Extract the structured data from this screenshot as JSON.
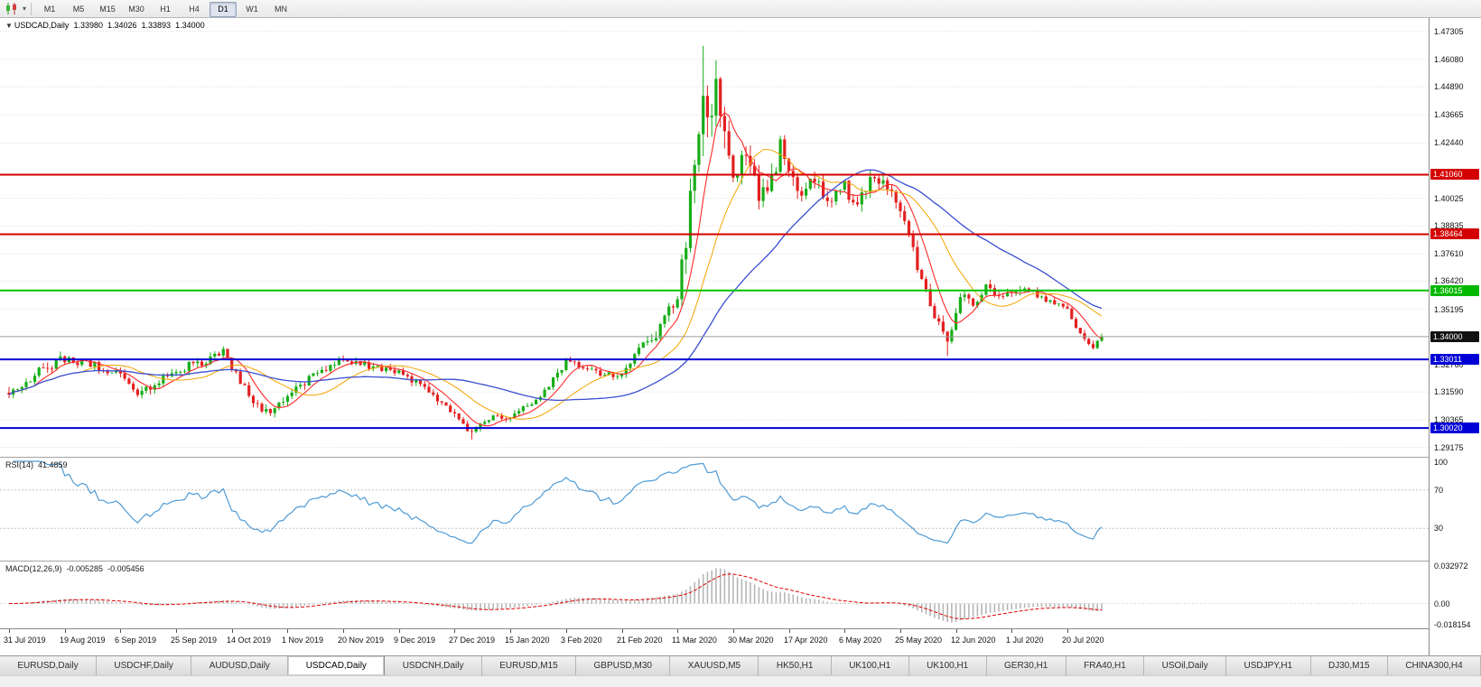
{
  "toolbar": {
    "chart_icon": "candlestick-chart-icon",
    "caret_icon": "▾",
    "timeframes": [
      "M1",
      "M5",
      "M15",
      "M30",
      "H1",
      "H4",
      "D1",
      "W1",
      "MN"
    ],
    "active_timeframe": "D1"
  },
  "symbol_header": {
    "marker": "▼",
    "name": "USDCAD,Daily",
    "open": "1.33980",
    "high": "1.34026",
    "low": "1.33893",
    "close": "1.34000"
  },
  "price_axis": {
    "labels": [
      {
        "text": "1.47305",
        "value": 1.47305
      },
      {
        "text": "1.46080",
        "value": 1.4608
      },
      {
        "text": "1.44890",
        "value": 1.4489
      },
      {
        "text": "1.43665",
        "value": 1.43665
      },
      {
        "text": "1.42440",
        "value": 1.4244
      },
      {
        "text": "1.40025",
        "value": 1.40025
      },
      {
        "text": "1.38835",
        "value": 1.38835
      },
      {
        "text": "1.37610",
        "value": 1.3761
      },
      {
        "text": "1.36420",
        "value": 1.3642
      },
      {
        "text": "1.35195",
        "value": 1.35195
      },
      {
        "text": "1.32760",
        "value": 1.3276
      },
      {
        "text": "1.31590",
        "value": 1.3159
      },
      {
        "text": "1.30365",
        "value": 1.30365
      },
      {
        "text": "1.29175",
        "value": 1.29175
      }
    ],
    "badges": [
      {
        "text": "1.41060",
        "value": 1.4106,
        "bg": "#d40000"
      },
      {
        "text": "1.38464",
        "value": 1.38464,
        "bg": "#d40000"
      },
      {
        "text": "1.36015",
        "value": 1.36015,
        "bg": "#00b800"
      },
      {
        "text": "1.34000",
        "value": 1.34,
        "bg": "#111111"
      },
      {
        "text": "1.33011",
        "value": 1.33011,
        "bg": "#0000d6"
      },
      {
        "text": "1.30020",
        "value": 1.3002,
        "bg": "#0000d6"
      }
    ]
  },
  "indicators": {
    "rsi": {
      "title": "RSI(14)",
      "value": "41.4859",
      "color": "#4f9bd5",
      "levels": [
        {
          "text": "100",
          "value": 100
        },
        {
          "text": "70",
          "value": 70
        },
        {
          "text": "30",
          "value": 30
        }
      ]
    },
    "macd": {
      "title": "MACD(12,26,9)",
      "value_main": "-0.005285",
      "value_signal": "-0.005456",
      "signal_color": "#e00000",
      "hist_color": "#b6b6b6",
      "axis": [
        {
          "text": "0.032972",
          "value": 0.032972
        },
        {
          "text": "0.00",
          "value": 0
        },
        {
          "text": "-0.018154",
          "value": -0.018154
        }
      ]
    }
  },
  "time_axis": {
    "dates": [
      "31 Jul 2019",
      "19 Aug 2019",
      "6 Sep 2019",
      "25 Sep 2019",
      "14 Oct 2019",
      "1 Nov 2019",
      "20 Nov 2019",
      "9 Dec 2019",
      "27 Dec 2019",
      "15 Jan 2020",
      "3 Feb 2020",
      "21 Feb 2020",
      "11 Mar 2020",
      "30 Mar 2020",
      "17 Apr 2020",
      "6 May 2020",
      "25 May 2020",
      "12 Jun 2020",
      "1 Jul 2020",
      "20 Jul 2020"
    ]
  },
  "tabs": {
    "active_index": 3,
    "items": [
      "EURUSD,Daily",
      "USDCHF,Daily",
      "AUDUSD,Daily",
      "USDCAD,Daily",
      "USDCNH,Daily",
      "EURUSD,M15",
      "GBPUSD,M30",
      "XAUUSD,M5",
      "HK50,H1",
      "UK100,H1",
      "UK100,H1",
      "GER30,H1",
      "FRA40,H1",
      "USOil,Daily",
      "USDJPY,H1",
      "DJ30,M15",
      "CHINA300,H4"
    ]
  },
  "chart_data": {
    "type": "candlestick",
    "symbol": "USDCAD",
    "timeframe": "Daily",
    "title": "USDCAD,Daily",
    "bar_count": 256,
    "last_close": 1.34,
    "price_range": {
      "min": 1.29,
      "max": 1.4765
    },
    "macd_range": {
      "min": -0.0182,
      "max": 0.033
    },
    "extremes": {
      "high": 1.4668,
      "high_index": 162,
      "low": 1.2952,
      "low_index": 108
    },
    "forced_lows": [
      [
        219,
        1.3316
      ]
    ],
    "colors": {
      "up": "#17ad17",
      "down": "#e32020",
      "grid": "#dcdcdc",
      "current_price_line": "#9a9a9a"
    },
    "hlines": [
      {
        "value": 1.4106,
        "color": "#d40000",
        "w": 2
      },
      {
        "value": 1.38464,
        "color": "#d40000",
        "w": 2
      },
      {
        "value": 1.36015,
        "color": "#00c400",
        "w": 2
      },
      {
        "value": 1.33011,
        "color": "#0000d6",
        "w": 2
      },
      {
        "value": 1.3002,
        "color": "#0000d6",
        "w": 2
      }
    ],
    "current_price": {
      "value": 1.34
    },
    "moving_averages": [
      {
        "period": 7,
        "color": "#ff2a2a",
        "width": 1.1
      },
      {
        "period": 18,
        "color": "#f2a400",
        "width": 1.0
      },
      {
        "period": 42,
        "color": "#3a4fd0",
        "width": 1.3
      }
    ],
    "price_anchors": [
      [
        0,
        1.3165,
        0.0035
      ],
      [
        6,
        1.3235,
        0.0033
      ],
      [
        13,
        1.3305,
        0.003
      ],
      [
        19,
        1.328,
        0.0028
      ],
      [
        26,
        1.323,
        0.0028
      ],
      [
        30,
        1.315,
        0.003
      ],
      [
        39,
        1.3255,
        0.0028
      ],
      [
        45,
        1.329,
        0.0028
      ],
      [
        50,
        1.333,
        0.0028
      ],
      [
        57,
        1.312,
        0.003
      ],
      [
        61,
        1.3055,
        0.0028
      ],
      [
        65,
        1.314,
        0.0026
      ],
      [
        71,
        1.323,
        0.0024
      ],
      [
        78,
        1.33,
        0.0024
      ],
      [
        84,
        1.327,
        0.0022
      ],
      [
        91,
        1.3245,
        0.0022
      ],
      [
        97,
        1.317,
        0.0022
      ],
      [
        104,
        1.3065,
        0.0022
      ],
      [
        108,
        1.2975,
        0.0022
      ],
      [
        113,
        1.306,
        0.002
      ],
      [
        117,
        1.3045,
        0.002
      ],
      [
        124,
        1.3135,
        0.002
      ],
      [
        130,
        1.329,
        0.0024
      ],
      [
        137,
        1.3245,
        0.0022
      ],
      [
        143,
        1.3235,
        0.0024
      ],
      [
        148,
        1.338,
        0.003
      ],
      [
        152,
        1.343,
        0.004
      ],
      [
        156,
        1.357,
        0.006
      ],
      [
        158,
        1.381,
        0.009
      ],
      [
        160,
        1.421,
        0.013
      ],
      [
        162,
        1.452,
        0.014
      ],
      [
        163,
        1.44,
        0.013
      ],
      [
        165,
        1.448,
        0.011
      ],
      [
        167,
        1.428,
        0.01
      ],
      [
        169,
        1.41,
        0.009
      ],
      [
        172,
        1.417,
        0.008
      ],
      [
        175,
        1.403,
        0.007
      ],
      [
        178,
        1.408,
        0.006
      ],
      [
        180,
        1.423,
        0.006
      ],
      [
        182,
        1.415,
        0.0055
      ],
      [
        185,
        1.399,
        0.005
      ],
      [
        188,
        1.41,
        0.005
      ],
      [
        191,
        1.397,
        0.0045
      ],
      [
        195,
        1.405,
        0.0045
      ],
      [
        198,
        1.396,
        0.004
      ],
      [
        201,
        1.41,
        0.004
      ],
      [
        204,
        1.408,
        0.0038
      ],
      [
        207,
        1.398,
        0.0036
      ],
      [
        210,
        1.384,
        0.0036
      ],
      [
        213,
        1.365,
        0.0036
      ],
      [
        216,
        1.35,
        0.0034
      ],
      [
        219,
        1.337,
        0.0035
      ],
      [
        222,
        1.358,
        0.0032
      ],
      [
        225,
        1.3545,
        0.003
      ],
      [
        228,
        1.362,
        0.0028
      ],
      [
        231,
        1.3575,
        0.0026
      ],
      [
        234,
        1.358,
        0.0024
      ],
      [
        237,
        1.362,
        0.0022
      ],
      [
        240,
        1.3575,
        0.0022
      ],
      [
        243,
        1.356,
        0.002
      ],
      [
        247,
        1.352,
        0.002
      ],
      [
        249,
        1.345,
        0.002
      ],
      [
        251,
        1.3395,
        0.002
      ],
      [
        253,
        1.336,
        0.002
      ],
      [
        255,
        1.34,
        0.0018
      ]
    ]
  }
}
